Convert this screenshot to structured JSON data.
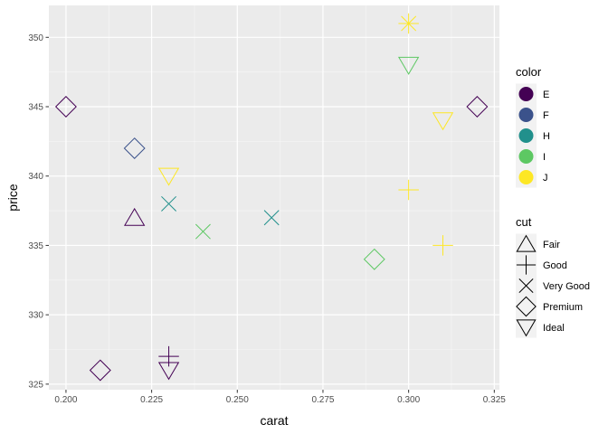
{
  "chart_data": {
    "type": "scatter",
    "xlabel": "carat",
    "ylabel": "price",
    "xlim": [
      0.195,
      0.3265
    ],
    "ylim": [
      324.6,
      352.3
    ],
    "x_ticks": [
      0.2,
      0.225,
      0.25,
      0.275,
      0.3,
      0.325
    ],
    "x_tick_labels": [
      "0.200",
      "0.225",
      "0.250",
      "0.275",
      "0.300",
      "0.325"
    ],
    "y_ticks": [
      325,
      330,
      335,
      340,
      345,
      350
    ],
    "y_tick_labels": [
      "325",
      "330",
      "335",
      "340",
      "345",
      "350"
    ],
    "grid": true,
    "legend_placement": "right",
    "colors": {
      "E": "#440154",
      "F": "#3B528B",
      "H": "#21908C",
      "I": "#5DC863",
      "J": "#FDE725"
    },
    "legends": {
      "color": {
        "title": "color",
        "entries": [
          "E",
          "F",
          "H",
          "I",
          "J"
        ]
      },
      "cut": {
        "title": "cut",
        "entries": [
          "Fair",
          "Good",
          "Very Good",
          "Premium",
          "Ideal"
        ],
        "shapes": {
          "Fair": "triangle-up",
          "Good": "plus",
          "Very Good": "cross",
          "Premium": "diamond",
          "Ideal": "triangle-down"
        }
      }
    },
    "points": [
      {
        "carat": 0.23,
        "price": 326,
        "color": "E",
        "cut": "Ideal"
      },
      {
        "carat": 0.21,
        "price": 326,
        "color": "E",
        "cut": "Premium"
      },
      {
        "carat": 0.23,
        "price": 327,
        "color": "E",
        "cut": "Good"
      },
      {
        "carat": 0.29,
        "price": 334,
        "color": "I",
        "cut": "Premium"
      },
      {
        "carat": 0.31,
        "price": 335,
        "color": "J",
        "cut": "Good"
      },
      {
        "carat": 0.24,
        "price": 336,
        "color": "I",
        "cut": "Very Good"
      },
      {
        "carat": 0.26,
        "price": 337,
        "color": "H",
        "cut": "Very Good"
      },
      {
        "carat": 0.22,
        "price": 337,
        "color": "E",
        "cut": "Fair"
      },
      {
        "carat": 0.23,
        "price": 338,
        "color": "H",
        "cut": "Very Good"
      },
      {
        "carat": 0.3,
        "price": 339,
        "color": "J",
        "cut": "Good"
      },
      {
        "carat": 0.23,
        "price": 340,
        "color": "J",
        "cut": "Ideal"
      },
      {
        "carat": 0.22,
        "price": 342,
        "color": "F",
        "cut": "Premium"
      },
      {
        "carat": 0.31,
        "price": 344,
        "color": "J",
        "cut": "Ideal"
      },
      {
        "carat": 0.2,
        "price": 345,
        "color": "E",
        "cut": "Premium"
      },
      {
        "carat": 0.32,
        "price": 345,
        "color": "E",
        "cut": "Premium"
      },
      {
        "carat": 0.3,
        "price": 348,
        "color": "I",
        "cut": "Ideal"
      },
      {
        "carat": 0.3,
        "price": 351,
        "color": "J",
        "cut": "Good"
      },
      {
        "carat": 0.3,
        "price": 351,
        "color": "J",
        "cut": "Very Good"
      }
    ]
  }
}
